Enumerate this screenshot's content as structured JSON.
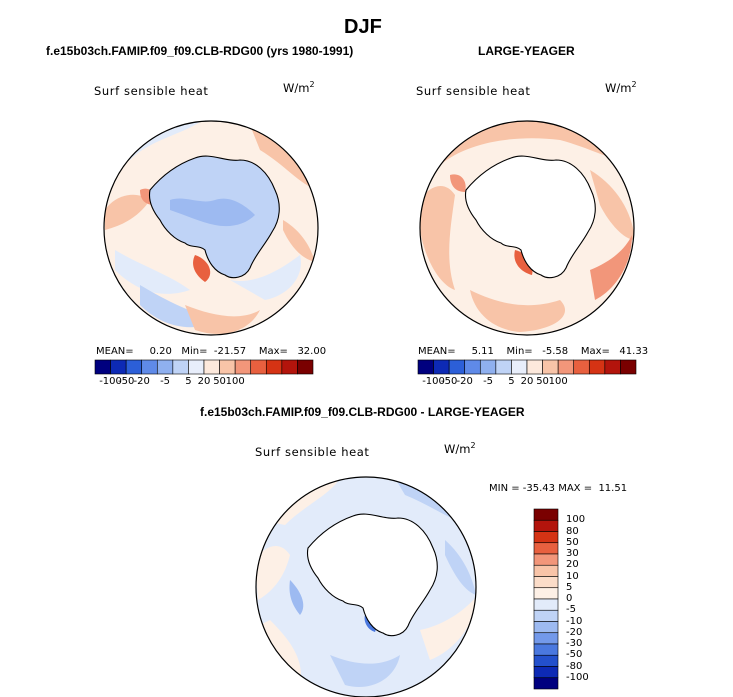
{
  "page_title": "DJF",
  "panels": [
    {
      "title": "f.e15b03ch.FAMIP.f09_f09.CLB-RDG00 (yrs 1980-1991)",
      "variable": "Surf sensible heat",
      "units": "W/m",
      "units_exp": "2",
      "stats": {
        "mean_label": "MEAN=",
        "mean": "0.20",
        "min_label": "Min=",
        "min": "-21.57",
        "max_label": "Max=",
        "max": "32.00"
      }
    },
    {
      "title": "LARGE-YEAGER",
      "variable": "Surf sensible heat",
      "units": "W/m",
      "units_exp": "2",
      "stats": {
        "mean_label": "MEAN=",
        "mean": "5.11",
        "min_label": "Min=",
        "min": "-5.58",
        "max_label": "Max=",
        "max": "41.33"
      }
    },
    {
      "title": "f.e15b03ch.FAMIP.f09_f09.CLB-RDG00 - LARGE-YEAGER",
      "variable": "Surf sensible heat",
      "units": "W/m",
      "units_exp": "2",
      "stats_text": "MIN = -35.43 MAX =  11.51"
    }
  ],
  "colorbar_h": {
    "labels": [
      "-100",
      "-50",
      "-20",
      "-5",
      "5",
      "20",
      "50",
      "100"
    ],
    "colors": [
      "#00007f",
      "#0d2ab5",
      "#2c5fd8",
      "#5f8ae8",
      "#8fb0ef",
      "#bfd3f6",
      "#e8eefb",
      "#fde9dc",
      "#f8c4a8",
      "#f2967a",
      "#e8603f",
      "#d53314",
      "#b3140c",
      "#7a0000"
    ]
  },
  "colorbar_v": {
    "labels": [
      "100",
      "80",
      "50",
      "30",
      "20",
      "10",
      "5",
      "0",
      "-5",
      "-10",
      "-20",
      "-30",
      "-50",
      "-80",
      "-100"
    ],
    "colors": [
      "#7a0000",
      "#b3140c",
      "#d53314",
      "#e8603f",
      "#f2967a",
      "#f8c4a8",
      "#fbdcc8",
      "#fdf0e6",
      "#e2ebfa",
      "#bfd3f6",
      "#9dbaf1",
      "#7399ea",
      "#4a78df",
      "#2350cc",
      "#0d2ab5",
      "#00007f"
    ]
  }
}
